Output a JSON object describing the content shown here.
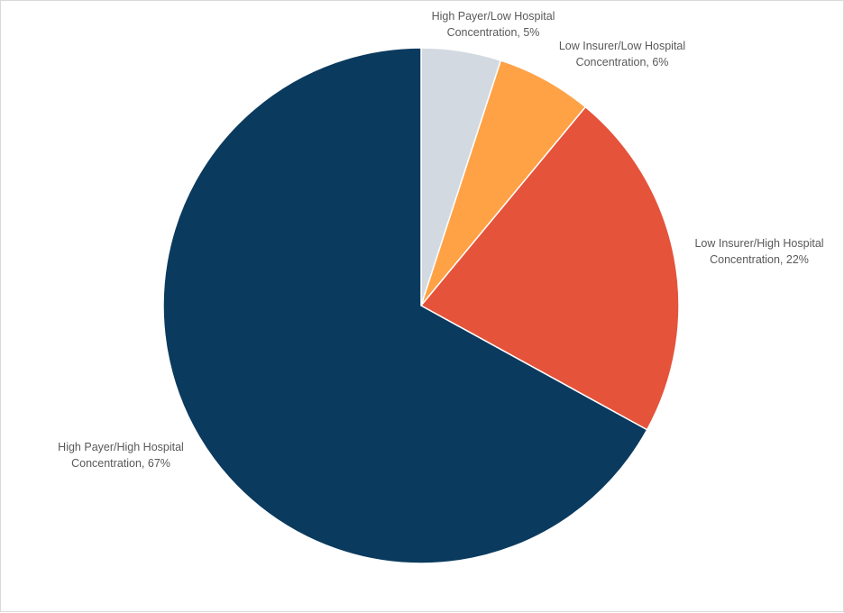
{
  "chart_data": {
    "type": "pie",
    "title": "",
    "start_angle_deg": 0,
    "direction": "clockwise",
    "slices": [
      {
        "name": "High Payer/Low Hospital Concentration",
        "value": 5,
        "label_lines": [
          "High Payer/Low Hospital",
          "Concentration, 5%"
        ],
        "color": "#D3D9E0"
      },
      {
        "name": "Low Insurer/Low Hospital Concentration",
        "value": 6,
        "label_lines": [
          "Low Insurer/Low Hospital",
          "Concentration, 6%"
        ],
        "color": "#FFA145"
      },
      {
        "name": "Low Insurer/High Hospital Concentration",
        "value": 22,
        "label_lines": [
          "Low Insurer/High Hospital",
          "Concentration, 22%"
        ],
        "color": "#E5533A"
      },
      {
        "name": "High Payer/High Hospital Concentration",
        "value": 67,
        "label_lines": [
          "High Payer/High Hospital",
          "Concentration, 67%"
        ],
        "color": "#0A3A5E"
      }
    ],
    "legend": "none",
    "data_labels": "outside"
  }
}
